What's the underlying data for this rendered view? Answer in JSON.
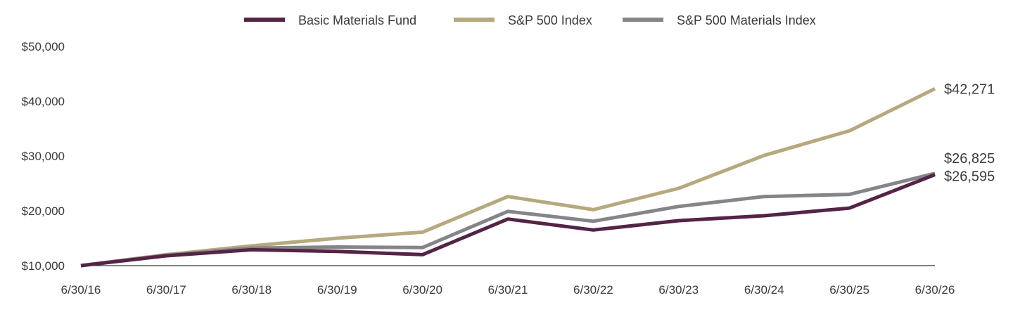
{
  "chart_data": {
    "type": "line",
    "title": "",
    "xlabel": "",
    "ylabel": "",
    "categories": [
      "6/30/16",
      "6/30/17",
      "6/30/18",
      "6/30/19",
      "6/30/20",
      "6/30/21",
      "6/30/22",
      "6/30/23",
      "6/30/24",
      "6/30/25",
      "6/30/26"
    ],
    "y_ticks": [
      "$10,000",
      "$20,000",
      "$30,000",
      "$40,000",
      "$50,000"
    ],
    "y_tick_values": [
      10000,
      20000,
      30000,
      40000,
      50000
    ],
    "ylim": [
      10000,
      50000
    ],
    "grid": false,
    "legend_position": "top",
    "series": [
      {
        "name": "Basic Materials Fund",
        "color": "#542446",
        "values": [
          10000,
          11800,
          12900,
          12600,
          12000,
          18500,
          16500,
          18200,
          19100,
          20500,
          26595
        ],
        "end_label": "$26,595"
      },
      {
        "name": "S&P 500 Index",
        "color": "#b6a97e",
        "values": [
          10000,
          12000,
          13600,
          15000,
          16100,
          22600,
          20200,
          24100,
          30100,
          34600,
          42271
        ],
        "end_label": "$42,271"
      },
      {
        "name": "S&P 500 Materials Index",
        "color": "#858589",
        "values": [
          10000,
          11900,
          13200,
          13400,
          13300,
          19900,
          18100,
          20800,
          22600,
          23000,
          26825
        ],
        "end_label": "$26,825"
      }
    ]
  }
}
